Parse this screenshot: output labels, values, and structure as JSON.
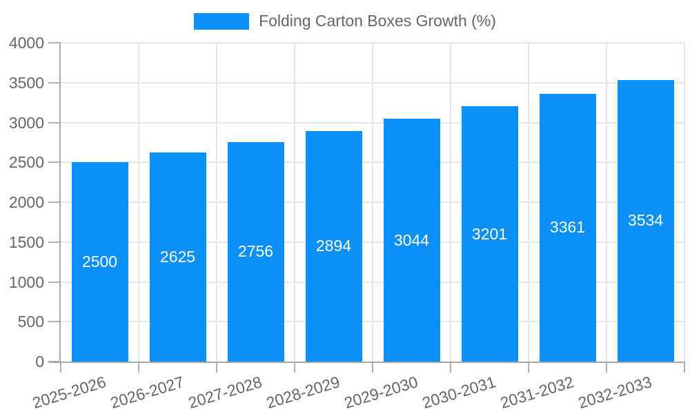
{
  "chart_data": {
    "type": "bar",
    "title": "Folding Carton Boxes Growth (%)",
    "legend": {
      "label": "Folding Carton Boxes Growth (%)",
      "position": "top"
    },
    "categories": [
      "2025-2026",
      "2026-2027",
      "2027-2028",
      "2028-2029",
      "2029-2030",
      "2030-2031",
      "2031-2032",
      "2032-2033"
    ],
    "values": [
      2500,
      2625,
      2756,
      2894,
      3044,
      3201,
      3361,
      3534
    ],
    "data_labels": [
      "2500",
      "2625",
      "2756",
      "2894",
      "3044",
      "3201",
      "3361",
      "3534"
    ],
    "xlabel": "",
    "ylabel": "",
    "ylim": [
      0,
      4000
    ],
    "yticks": [
      0,
      500,
      1000,
      1500,
      2000,
      2500,
      3000,
      3500,
      4000
    ],
    "grid": true,
    "x_label_rotation_deg": -17,
    "colors": {
      "bar": "#0a90f6",
      "bar_label": "#ffffff",
      "axis_text": "#666666",
      "gridline": "#e6e6e6",
      "axis_line": "#a6a6a6",
      "tick": "#b0b0b0"
    }
  }
}
